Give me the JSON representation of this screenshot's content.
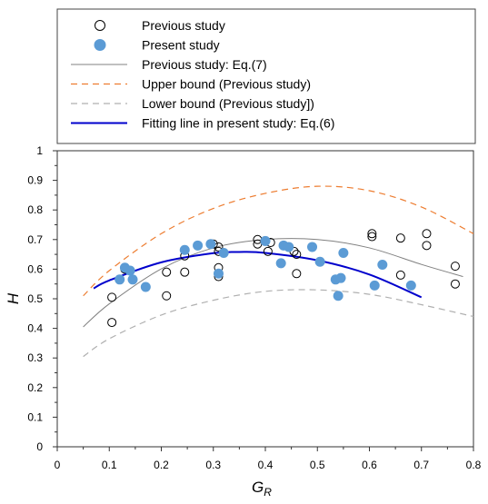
{
  "chart_data": {
    "type": "scatter",
    "xlabel": "G",
    "xlabel_sub": "R",
    "ylabel": "H",
    "xlim": [
      0,
      0.8
    ],
    "ylim": [
      0,
      1
    ],
    "x_ticks": [
      "0",
      "0.1",
      "0.2",
      "0.3",
      "0.4",
      "0.5",
      "0.6",
      "0.7",
      "0.8"
    ],
    "y_ticks": [
      "0",
      "0.1",
      "0.2",
      "0.3",
      "0.4",
      "0.5",
      "0.6",
      "0.7",
      "0.8",
      "0.9",
      "1"
    ],
    "grid": false,
    "legend_position": "top",
    "legend": [
      {
        "label": "Previous study",
        "kind": "open-circle"
      },
      {
        "label": "Present study",
        "kind": "filled-circle"
      },
      {
        "label": "Previous study: Eq.(7)",
        "kind": "line-gray"
      },
      {
        "label": "Upper bound  (Previous study)",
        "kind": "dash-orange"
      },
      {
        "label": "Lower bound  (Previous study])",
        "kind": "dash-gray"
      },
      {
        "label": "Fitting line in present study: Eq.(6)",
        "kind": "line-blue"
      }
    ],
    "colors": {
      "present_fill": "#5b9bd5",
      "previous_stroke": "#000000",
      "eq7_line": "#808080",
      "upper_bound": "#ed7d31",
      "lower_bound": "#b0b0b0",
      "fit_line": "#0000cc"
    },
    "series": [
      {
        "name": "Previous study",
        "points": [
          [
            0.105,
            0.42
          ],
          [
            0.105,
            0.505
          ],
          [
            0.13,
            0.6
          ],
          [
            0.21,
            0.51
          ],
          [
            0.21,
            0.59
          ],
          [
            0.245,
            0.59
          ],
          [
            0.245,
            0.645
          ],
          [
            0.3,
            0.685
          ],
          [
            0.31,
            0.575
          ],
          [
            0.31,
            0.605
          ],
          [
            0.31,
            0.66
          ],
          [
            0.31,
            0.675
          ],
          [
            0.385,
            0.685
          ],
          [
            0.385,
            0.7
          ],
          [
            0.405,
            0.66
          ],
          [
            0.41,
            0.69
          ],
          [
            0.455,
            0.66
          ],
          [
            0.46,
            0.585
          ],
          [
            0.46,
            0.65
          ],
          [
            0.605,
            0.71
          ],
          [
            0.605,
            0.72
          ],
          [
            0.66,
            0.58
          ],
          [
            0.66,
            0.705
          ],
          [
            0.71,
            0.68
          ],
          [
            0.71,
            0.72
          ],
          [
            0.765,
            0.55
          ],
          [
            0.765,
            0.61
          ]
        ]
      },
      {
        "name": "Present study",
        "points": [
          [
            0.12,
            0.565
          ],
          [
            0.13,
            0.605
          ],
          [
            0.14,
            0.595
          ],
          [
            0.145,
            0.565
          ],
          [
            0.17,
            0.54
          ],
          [
            0.245,
            0.665
          ],
          [
            0.27,
            0.68
          ],
          [
            0.295,
            0.685
          ],
          [
            0.31,
            0.585
          ],
          [
            0.32,
            0.655
          ],
          [
            0.4,
            0.695
          ],
          [
            0.43,
            0.62
          ],
          [
            0.435,
            0.68
          ],
          [
            0.445,
            0.675
          ],
          [
            0.49,
            0.675
          ],
          [
            0.505,
            0.625
          ],
          [
            0.535,
            0.565
          ],
          [
            0.54,
            0.51
          ],
          [
            0.545,
            0.57
          ],
          [
            0.55,
            0.655
          ],
          [
            0.61,
            0.545
          ],
          [
            0.625,
            0.615
          ],
          [
            0.68,
            0.545
          ]
        ]
      }
    ],
    "curves": [
      {
        "name": "Previous study: Eq.(7)",
        "points": [
          [
            0.05,
            0.405
          ],
          [
            0.1,
            0.483
          ],
          [
            0.2,
            0.601
          ],
          [
            0.3,
            0.672
          ],
          [
            0.4,
            0.7
          ],
          [
            0.5,
            0.7
          ],
          [
            0.6,
            0.672
          ],
          [
            0.7,
            0.616
          ],
          [
            0.78,
            0.575
          ]
        ]
      },
      {
        "name": "Upper bound  (Previous study)",
        "points": [
          [
            0.05,
            0.51
          ],
          [
            0.1,
            0.595
          ],
          [
            0.2,
            0.72
          ],
          [
            0.3,
            0.805
          ],
          [
            0.4,
            0.856
          ],
          [
            0.5,
            0.88
          ],
          [
            0.6,
            0.865
          ],
          [
            0.7,
            0.81
          ],
          [
            0.8,
            0.72
          ]
        ]
      },
      {
        "name": "Lower bound  (Previous study])",
        "points": [
          [
            0.05,
            0.305
          ],
          [
            0.1,
            0.365
          ],
          [
            0.2,
            0.445
          ],
          [
            0.3,
            0.495
          ],
          [
            0.4,
            0.525
          ],
          [
            0.5,
            0.53
          ],
          [
            0.6,
            0.515
          ],
          [
            0.7,
            0.48
          ],
          [
            0.8,
            0.44
          ]
        ]
      },
      {
        "name": "Fitting line in present study: Eq.(6)",
        "points": [
          [
            0.07,
            0.535
          ],
          [
            0.1,
            0.562
          ],
          [
            0.2,
            0.623
          ],
          [
            0.3,
            0.654
          ],
          [
            0.35,
            0.658
          ],
          [
            0.4,
            0.655
          ],
          [
            0.5,
            0.63
          ],
          [
            0.6,
            0.582
          ],
          [
            0.7,
            0.505
          ]
        ]
      }
    ]
  }
}
